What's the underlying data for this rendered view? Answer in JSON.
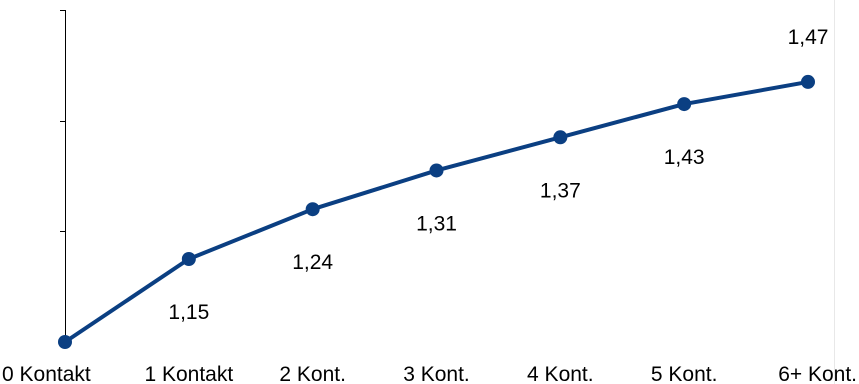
{
  "chart_data": {
    "type": "line",
    "title": "",
    "xlabel": "",
    "ylabel": "",
    "categories": [
      "0 Kontakt",
      "1 Kontakt",
      "2 Kont.",
      "3 Kont.",
      "4 Kont.",
      "5 Kont.",
      "6+ Kont."
    ],
    "series": [
      {
        "values": [
          1.0,
          1.15,
          1.24,
          1.31,
          1.37,
          1.43,
          1.47
        ],
        "labels": [
          "",
          "1,15",
          "1,24",
          "1,31",
          "1,37",
          "1,43",
          "1,47"
        ],
        "color": "#0b3f82"
      }
    ],
    "ylim": [
      1.0,
      1.6
    ],
    "y_ticks": [
      1.0,
      1.2,
      1.4,
      1.6
    ],
    "y_tick_labels_shown": false,
    "grid": false,
    "legend": "none",
    "data_label_placement": [
      "none",
      "below",
      "below",
      "below",
      "below",
      "below",
      "above"
    ]
  }
}
